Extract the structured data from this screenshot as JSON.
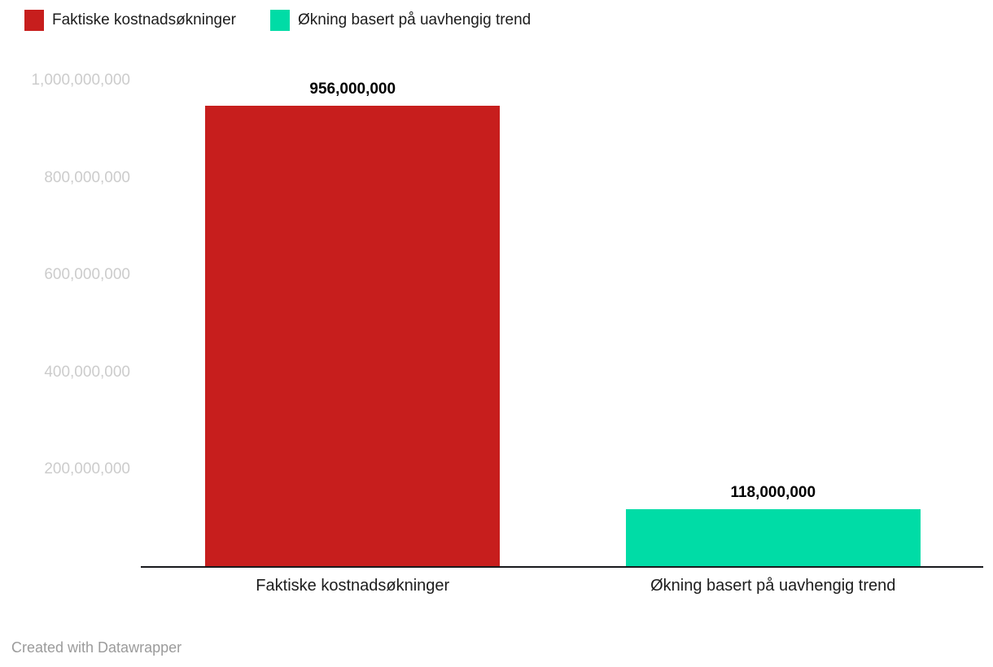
{
  "legend": {
    "items": [
      {
        "label": "Faktiske kostnadsøkninger",
        "color": "#c71e1d"
      },
      {
        "label": "Økning basert på uavhengig trend",
        "color": "#00dca6"
      }
    ]
  },
  "chart_data": {
    "type": "bar",
    "title": "",
    "categories": [
      "Faktiske kostnadsøkninger",
      "Økning basert på uavhengig trend"
    ],
    "values": [
      956000000,
      118000000
    ],
    "value_labels": [
      "956,000,000",
      "118,000,000"
    ],
    "colors": [
      "#c71e1d",
      "#00dca6"
    ],
    "xlabel": "",
    "ylabel": "",
    "ylim": [
      0,
      1000000000
    ],
    "yticks": [
      200000000,
      400000000,
      600000000,
      800000000,
      1000000000
    ],
    "ytick_labels": [
      "200,000,000",
      "400,000,000",
      "600,000,000",
      "800,000,000",
      "1,000,000,000"
    ],
    "grid": false,
    "legend_position": "top"
  },
  "footer": {
    "credit": "Created with Datawrapper"
  }
}
